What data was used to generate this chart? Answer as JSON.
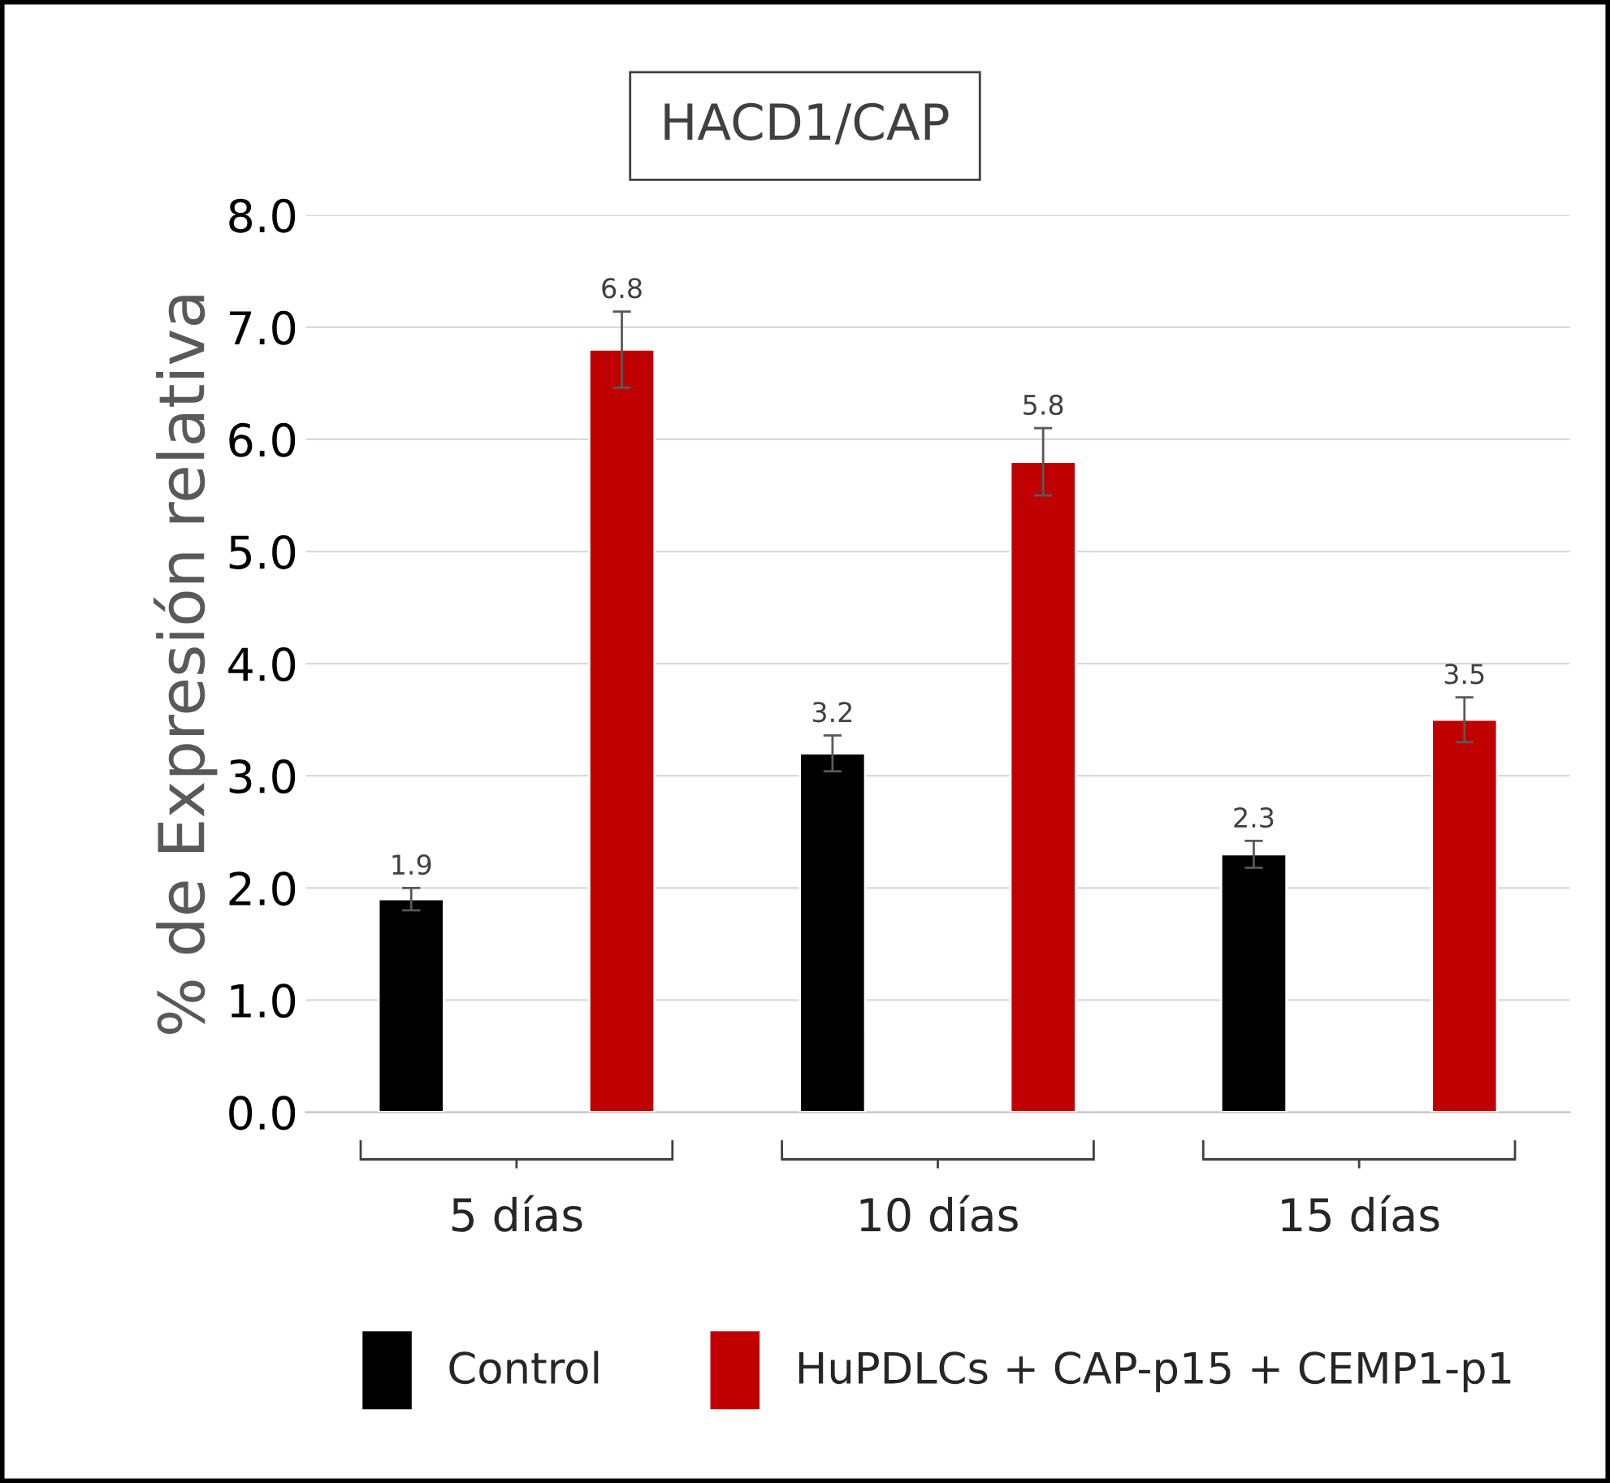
{
  "chart_data": {
    "type": "bar",
    "title": "HACD1/CAP",
    "ylabel": "% de Expresión relativa",
    "categories": [
      "5 días",
      "10 días",
      "15 días"
    ],
    "series": [
      {
        "name": "Control",
        "color": "#000000",
        "values": [
          1.9,
          3.2,
          2.3
        ],
        "errors": [
          0.1,
          0.16,
          0.12
        ]
      },
      {
        "name": "HuPDLCs + CAP-p15 + CEMP1-p1",
        "color": "#c00000",
        "values": [
          6.8,
          5.8,
          3.5
        ],
        "errors": [
          0.34,
          0.3,
          0.2
        ]
      }
    ],
    "ylim": [
      0,
      8
    ],
    "yticks": [
      {
        "value": 0,
        "label": "0.0"
      },
      {
        "value": 1,
        "label": "1.0"
      },
      {
        "value": 2,
        "label": "2.0"
      },
      {
        "value": 3,
        "label": "3.0"
      },
      {
        "value": 4,
        "label": "4.0"
      },
      {
        "value": 5,
        "label": "5.0"
      },
      {
        "value": 6,
        "label": "6.0"
      },
      {
        "value": 7,
        "label": "7.0"
      },
      {
        "value": 8,
        "label": "8.0"
      }
    ],
    "grid": "y",
    "data_labels": true,
    "legend": "bottom"
  }
}
